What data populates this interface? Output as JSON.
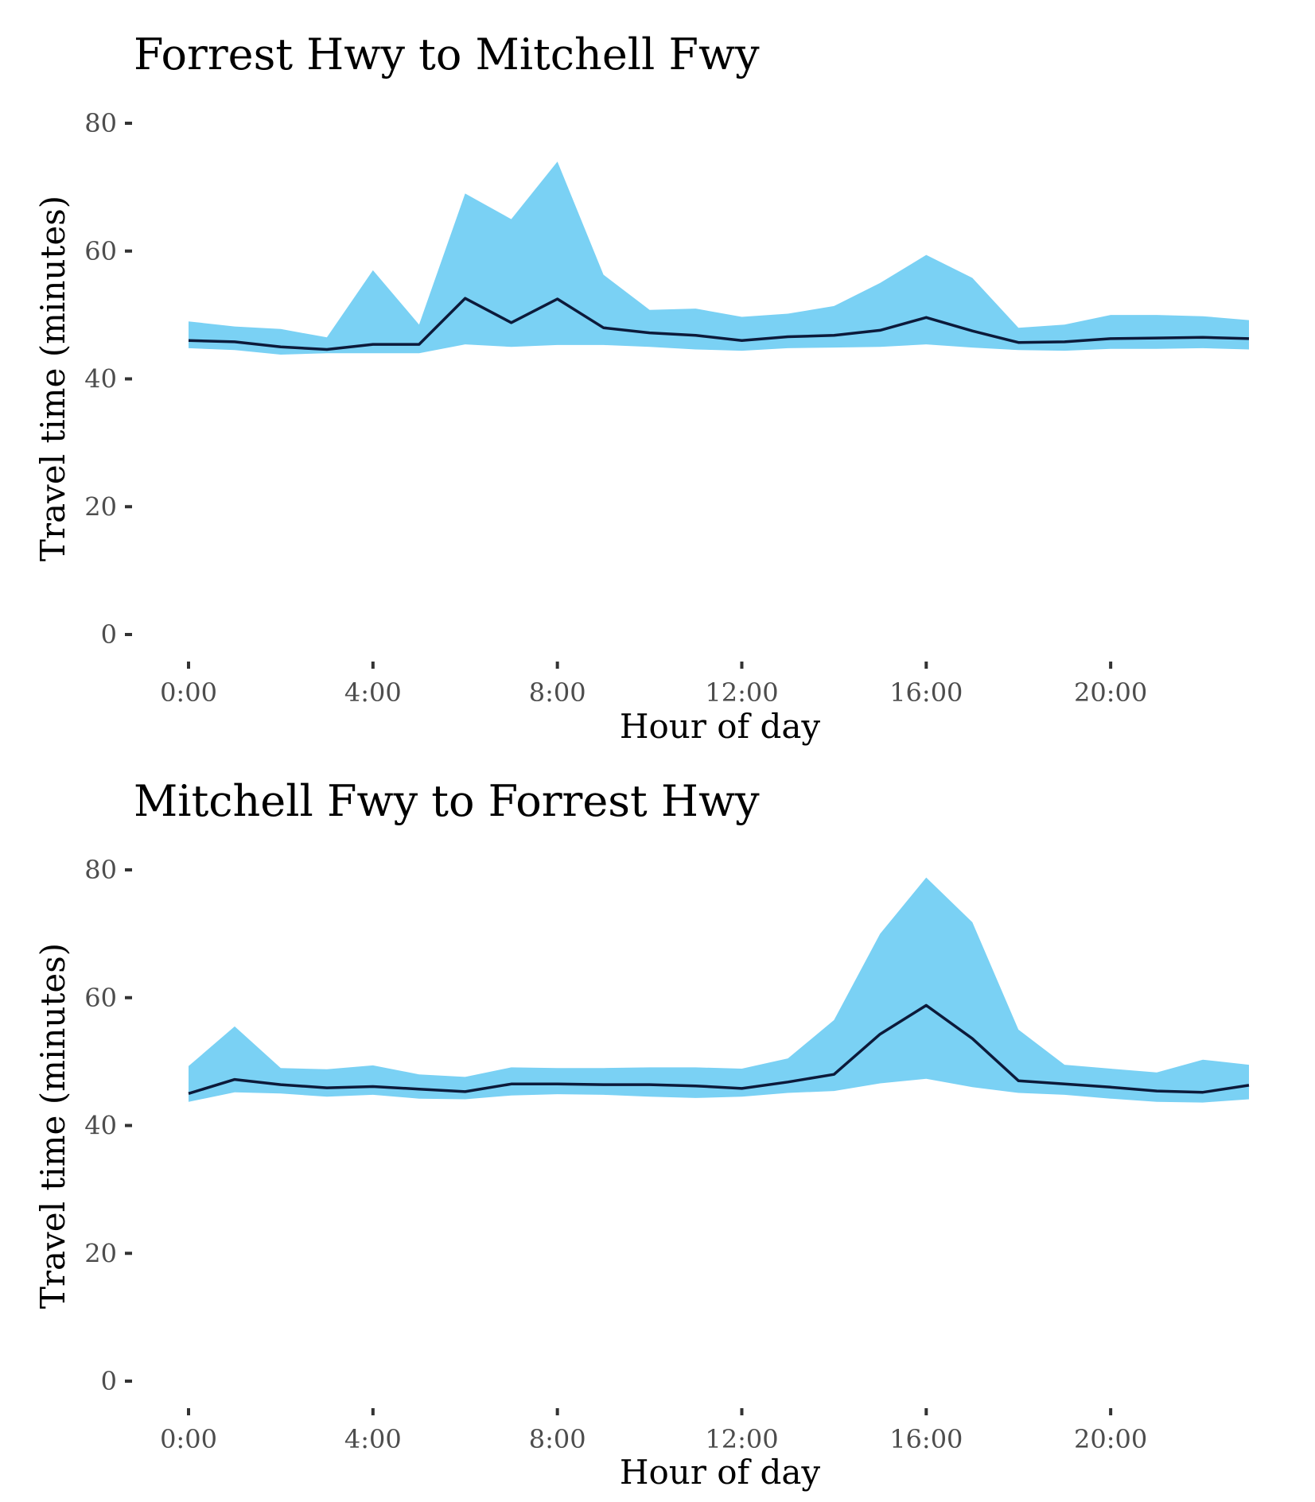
{
  "colors": {
    "band": "#7ad1f4",
    "line": "#0c1a3a",
    "tick": "#333333",
    "tick_label": "#4d4d4d"
  },
  "chart_data": [
    {
      "type": "area",
      "title": "Forrest Hwy to Mitchell Fwy",
      "xlabel": "Hour of day",
      "ylabel": "Travel time (minutes)",
      "ylim": [
        0,
        80
      ],
      "xlim": [
        0,
        23
      ],
      "yticks": [
        0,
        20,
        40,
        60,
        80
      ],
      "xticks": [
        0,
        4,
        8,
        12,
        16,
        20
      ],
      "xtick_labels": [
        "0:00",
        "4:00",
        "8:00",
        "12:00",
        "16:00",
        "20:00"
      ],
      "grid": false,
      "x": [
        0,
        1,
        2,
        3,
        4,
        5,
        6,
        7,
        8,
        9,
        10,
        11,
        12,
        13,
        14,
        15,
        16,
        17,
        18,
        19,
        20,
        21,
        22,
        23
      ],
      "series": [
        {
          "values": [
            46.0,
            45.8,
            45.0,
            44.6,
            45.4,
            45.4,
            52.6,
            48.8,
            52.5,
            48.0,
            47.2,
            46.8,
            46.0,
            46.6,
            46.8,
            47.6,
            49.6,
            47.5,
            45.7,
            45.8,
            46.3,
            46.4,
            46.5,
            46.3
          ]
        },
        {
          "role": "band-upper",
          "values": [
            49.0,
            48.2,
            47.8,
            46.5,
            57.0,
            48.5,
            69.0,
            65.0,
            74.0,
            56.3,
            50.8,
            51.0,
            49.7,
            50.2,
            51.4,
            55.0,
            59.4,
            55.8,
            48.0,
            48.5,
            50.0,
            50.0,
            49.8,
            49.2
          ]
        },
        {
          "role": "band-lower",
          "values": [
            44.8,
            44.5,
            43.8,
            44.0,
            44.0,
            44.0,
            45.4,
            45.0,
            45.3,
            45.3,
            45.0,
            44.6,
            44.4,
            44.8,
            44.9,
            45.0,
            45.4,
            44.9,
            44.5,
            44.4,
            44.7,
            44.7,
            44.8,
            44.6
          ]
        }
      ]
    },
    {
      "type": "area",
      "title": "Mitchell Fwy to Forrest Hwy",
      "xlabel": "Hour of day",
      "ylabel": "Travel time (minutes)",
      "ylim": [
        0,
        80
      ],
      "xlim": [
        0,
        23
      ],
      "yticks": [
        0,
        20,
        40,
        60,
        80
      ],
      "xticks": [
        0,
        4,
        8,
        12,
        16,
        20
      ],
      "xtick_labels": [
        "0:00",
        "4:00",
        "8:00",
        "12:00",
        "16:00",
        "20:00"
      ],
      "grid": false,
      "x": [
        0,
        1,
        2,
        3,
        4,
        5,
        6,
        7,
        8,
        9,
        10,
        11,
        12,
        13,
        14,
        15,
        16,
        17,
        18,
        19,
        20,
        21,
        22,
        23
      ],
      "series": [
        {
          "values": [
            45.0,
            47.2,
            46.4,
            45.9,
            46.1,
            45.7,
            45.3,
            46.5,
            46.5,
            46.4,
            46.4,
            46.2,
            45.8,
            46.8,
            48.0,
            54.3,
            58.8,
            53.6,
            47.0,
            46.5,
            46.0,
            45.4,
            45.2,
            46.3
          ]
        },
        {
          "role": "band-upper",
          "values": [
            49.3,
            55.5,
            49.0,
            48.8,
            49.4,
            48.0,
            47.6,
            49.1,
            49.0,
            49.0,
            49.1,
            49.1,
            48.9,
            50.5,
            56.5,
            70.0,
            78.8,
            71.8,
            55.0,
            49.5,
            48.9,
            48.3,
            50.3,
            49.5
          ]
        },
        {
          "role": "band-lower",
          "values": [
            43.7,
            45.2,
            45.0,
            44.5,
            44.8,
            44.2,
            44.1,
            44.7,
            44.9,
            44.8,
            44.5,
            44.3,
            44.5,
            45.1,
            45.4,
            46.6,
            47.3,
            46.0,
            45.1,
            44.8,
            44.2,
            43.7,
            43.6,
            44.1
          ]
        }
      ]
    }
  ]
}
